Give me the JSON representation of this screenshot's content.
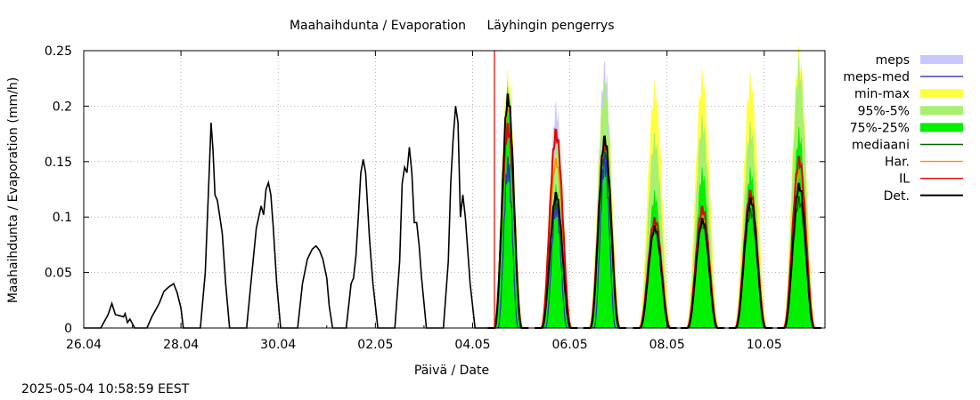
{
  "footer_timestamp": "2025-05-04 10:58:59 EEST",
  "colors": {
    "meps": "#c8c8ff",
    "meps_med": "#3030c0",
    "minmax": "#ffff40",
    "p95_5": "#a8f070",
    "p75_25": "#00f000",
    "mediaani": "#006400",
    "har": "#ff8c00",
    "il": "#e00000",
    "det": "#000000",
    "now_line": "#e00000"
  },
  "chart_data": {
    "type": "area",
    "title_left": "Maahaihdunta / Evaporation",
    "title_right": "Läyhingin pengerrys",
    "xlabel": "Päivä / Date",
    "ylabel": "Maahaihdunta / Evaporation (mm/h)",
    "xlim_days": [
      0,
      15.25
    ],
    "x_origin_date": "26.04",
    "ylim": [
      0,
      0.25
    ],
    "yticks": [
      {
        "value": 0,
        "label": "0"
      },
      {
        "value": 0.05,
        "label": "0.05"
      },
      {
        "value": 0.1,
        "label": "0.1"
      },
      {
        "value": 0.15,
        "label": "0.15"
      },
      {
        "value": 0.2,
        "label": "0.2"
      },
      {
        "value": 0.25,
        "label": "0.25"
      }
    ],
    "xticks": [
      {
        "day": 0,
        "label": "26.04"
      },
      {
        "day": 2,
        "label": "28.04"
      },
      {
        "day": 4,
        "label": "30.04"
      },
      {
        "day": 6,
        "label": "02.05"
      },
      {
        "day": 8,
        "label": "04.05"
      },
      {
        "day": 10,
        "label": "06.05"
      },
      {
        "day": 12,
        "label": "08.05"
      },
      {
        "day": 14,
        "label": "10.05"
      }
    ],
    "now_day": 8.45,
    "legend": [
      {
        "key": "meps",
        "label": "meps",
        "kind": "fill"
      },
      {
        "key": "meps_med",
        "label": "meps-med",
        "kind": "line"
      },
      {
        "key": "minmax",
        "label": "min-max",
        "kind": "fill"
      },
      {
        "key": "p95_5",
        "label": "95%-5%",
        "kind": "fill"
      },
      {
        "key": "p75_25",
        "label": "75%-25%",
        "kind": "fill"
      },
      {
        "key": "mediaani",
        "label": "mediaani",
        "kind": "line"
      },
      {
        "key": "har",
        "label": "Har.",
        "kind": "line"
      },
      {
        "key": "il",
        "label": "IL",
        "kind": "line"
      },
      {
        "key": "det",
        "label": "Det.",
        "kind": "line"
      }
    ],
    "observed": [
      [
        0.0,
        0
      ],
      [
        0.35,
        0
      ],
      [
        0.5,
        0.012
      ],
      [
        0.58,
        0.022
      ],
      [
        0.65,
        0.012
      ],
      [
        0.75,
        0.011
      ],
      [
        0.82,
        0.01
      ],
      [
        0.85,
        0.013
      ],
      [
        0.9,
        0.005
      ],
      [
        0.95,
        0.008
      ],
      [
        1.05,
        0
      ],
      [
        1.3,
        0
      ],
      [
        1.4,
        0.01
      ],
      [
        1.55,
        0.022
      ],
      [
        1.65,
        0.033
      ],
      [
        1.75,
        0.037
      ],
      [
        1.85,
        0.04
      ],
      [
        1.92,
        0.032
      ],
      [
        2.0,
        0.018
      ],
      [
        2.05,
        0
      ],
      [
        2.4,
        0
      ],
      [
        2.5,
        0.05
      ],
      [
        2.58,
        0.14
      ],
      [
        2.62,
        0.185
      ],
      [
        2.66,
        0.16
      ],
      [
        2.7,
        0.12
      ],
      [
        2.75,
        0.115
      ],
      [
        2.8,
        0.1
      ],
      [
        2.85,
        0.085
      ],
      [
        2.92,
        0.04
      ],
      [
        3.0,
        0
      ],
      [
        3.35,
        0
      ],
      [
        3.45,
        0.045
      ],
      [
        3.55,
        0.09
      ],
      [
        3.6,
        0.1
      ],
      [
        3.65,
        0.11
      ],
      [
        3.7,
        0.102
      ],
      [
        3.75,
        0.125
      ],
      [
        3.8,
        0.131
      ],
      [
        3.85,
        0.12
      ],
      [
        3.9,
        0.09
      ],
      [
        3.97,
        0.04
      ],
      [
        4.05,
        0
      ],
      [
        4.4,
        0
      ],
      [
        4.5,
        0.04
      ],
      [
        4.6,
        0.062
      ],
      [
        4.7,
        0.071
      ],
      [
        4.78,
        0.074
      ],
      [
        4.85,
        0.07
      ],
      [
        4.92,
        0.062
      ],
      [
        5.0,
        0.045
      ],
      [
        5.05,
        0.02
      ],
      [
        5.12,
        0
      ],
      [
        5.4,
        0
      ],
      [
        5.5,
        0.04
      ],
      [
        5.55,
        0.045
      ],
      [
        5.6,
        0.065
      ],
      [
        5.65,
        0.1
      ],
      [
        5.7,
        0.14
      ],
      [
        5.75,
        0.152
      ],
      [
        5.8,
        0.14
      ],
      [
        5.88,
        0.08
      ],
      [
        5.95,
        0.04
      ],
      [
        6.05,
        0
      ],
      [
        6.4,
        0
      ],
      [
        6.5,
        0.06
      ],
      [
        6.55,
        0.13
      ],
      [
        6.6,
        0.145
      ],
      [
        6.65,
        0.14
      ],
      [
        6.7,
        0.163
      ],
      [
        6.75,
        0.14
      ],
      [
        6.8,
        0.095
      ],
      [
        6.85,
        0.095
      ],
      [
        6.9,
        0.075
      ],
      [
        6.95,
        0.045
      ],
      [
        7.05,
        0
      ],
      [
        7.4,
        0
      ],
      [
        7.5,
        0.06
      ],
      [
        7.55,
        0.13
      ],
      [
        7.6,
        0.17
      ],
      [
        7.65,
        0.2
      ],
      [
        7.7,
        0.185
      ],
      [
        7.75,
        0.1
      ],
      [
        7.8,
        0.12
      ],
      [
        7.85,
        0.1
      ],
      [
        7.9,
        0.07
      ],
      [
        7.95,
        0.04
      ],
      [
        8.05,
        0
      ],
      [
        8.45,
        0
      ]
    ],
    "forecast_days": [
      {
        "center": 8.73,
        "half": 0.3,
        "minmax": 0.225,
        "p95": 0.215,
        "p75": 0.21,
        "meps": 0.2,
        "mepsmed": 0.145,
        "mediaani": 0.205,
        "har": 0.2,
        "il": 0.18,
        "det": 0.207
      },
      {
        "center": 9.72,
        "half": 0.32,
        "minmax": 0.19,
        "p95": 0.165,
        "p75": 0.125,
        "meps": 0.197,
        "mepsmed": 0.11,
        "mediaani": 0.115,
        "har": 0.15,
        "il": 0.175,
        "det": 0.12
      },
      {
        "center": 10.72,
        "half": 0.32,
        "minmax": 0.23,
        "p95": 0.215,
        "p75": 0.165,
        "meps": 0.232,
        "mepsmed": 0.15,
        "mediaani": 0.16,
        "har": 0.165,
        "il": 0.168,
        "det": 0.17
      },
      {
        "center": 11.75,
        "half": 0.33,
        "minmax": 0.215,
        "p95": 0.17,
        "p75": 0.12,
        "meps": 0.0,
        "mepsmed": 0.0,
        "mediaani": 0.09,
        "har": 0.095,
        "il": 0.097,
        "det": 0.09
      },
      {
        "center": 12.73,
        "half": 0.33,
        "minmax": 0.225,
        "p95": 0.185,
        "p75": 0.14,
        "meps": 0.0,
        "mepsmed": 0.0,
        "mediaani": 0.095,
        "har": 0.1,
        "il": 0.107,
        "det": 0.097
      },
      {
        "center": 13.72,
        "half": 0.33,
        "minmax": 0.222,
        "p95": 0.18,
        "p75": 0.14,
        "meps": 0.0,
        "mepsmed": 0.0,
        "mediaani": 0.105,
        "har": 0.115,
        "il": 0.121,
        "det": 0.115
      },
      {
        "center": 14.72,
        "half": 0.33,
        "minmax": 0.245,
        "p95": 0.235,
        "p75": 0.175,
        "meps": 0.0,
        "mepsmed": 0.0,
        "mediaani": 0.115,
        "har": 0.14,
        "il": 0.151,
        "det": 0.128
      }
    ]
  }
}
